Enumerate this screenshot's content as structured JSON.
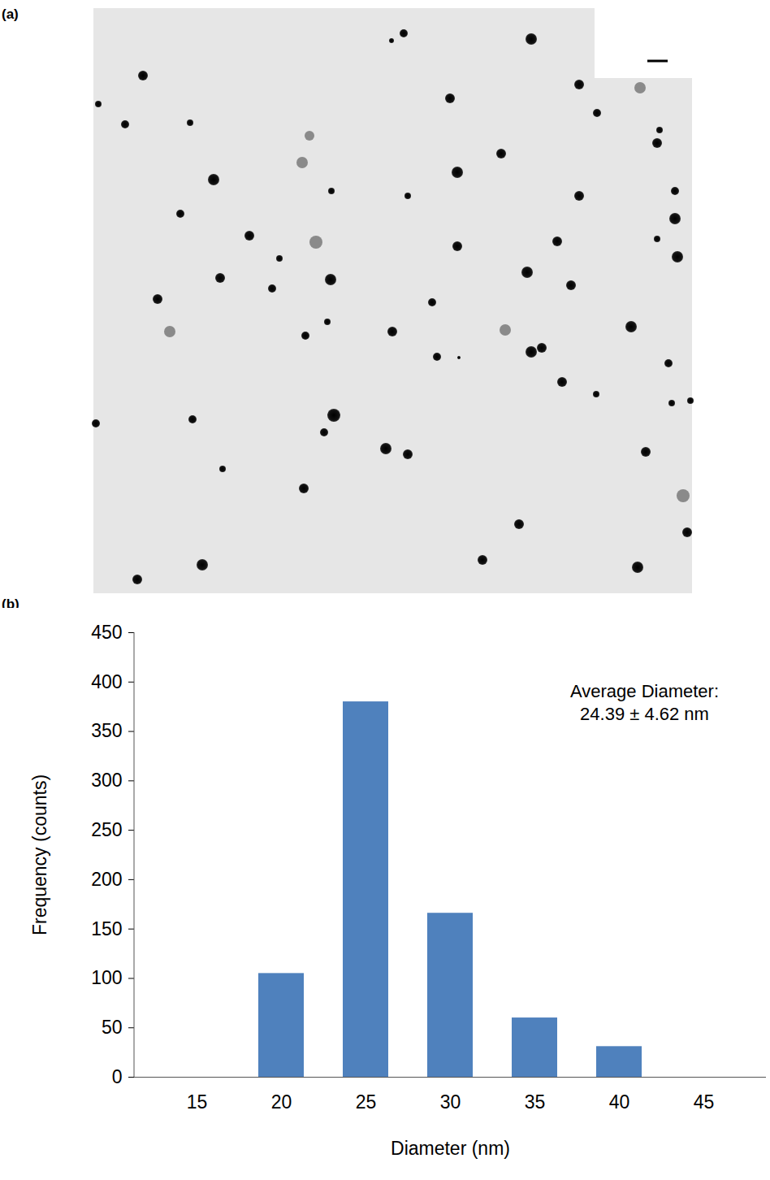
{
  "chart_data": [
    {
      "type": "image",
      "panel": "(a)"
    },
    {
      "type": "bar",
      "panel": "(b)",
      "categories": [
        "15",
        "20",
        "25",
        "30",
        "35",
        "40",
        "45"
      ],
      "values": [
        0,
        105,
        380,
        166,
        60,
        31,
        0
      ],
      "color": "#4f81bd",
      "xlabel": "Diameter (nm)",
      "ylabel": "Frequency (counts)",
      "ylim": [
        0,
        450
      ],
      "yticks": [
        0,
        50,
        100,
        150,
        200,
        250,
        300,
        350,
        400,
        450
      ],
      "annotation": [
        "Average Diameter:",
        "24.39 ± 4.62 nm"
      ],
      "grid": false
    }
  ]
}
